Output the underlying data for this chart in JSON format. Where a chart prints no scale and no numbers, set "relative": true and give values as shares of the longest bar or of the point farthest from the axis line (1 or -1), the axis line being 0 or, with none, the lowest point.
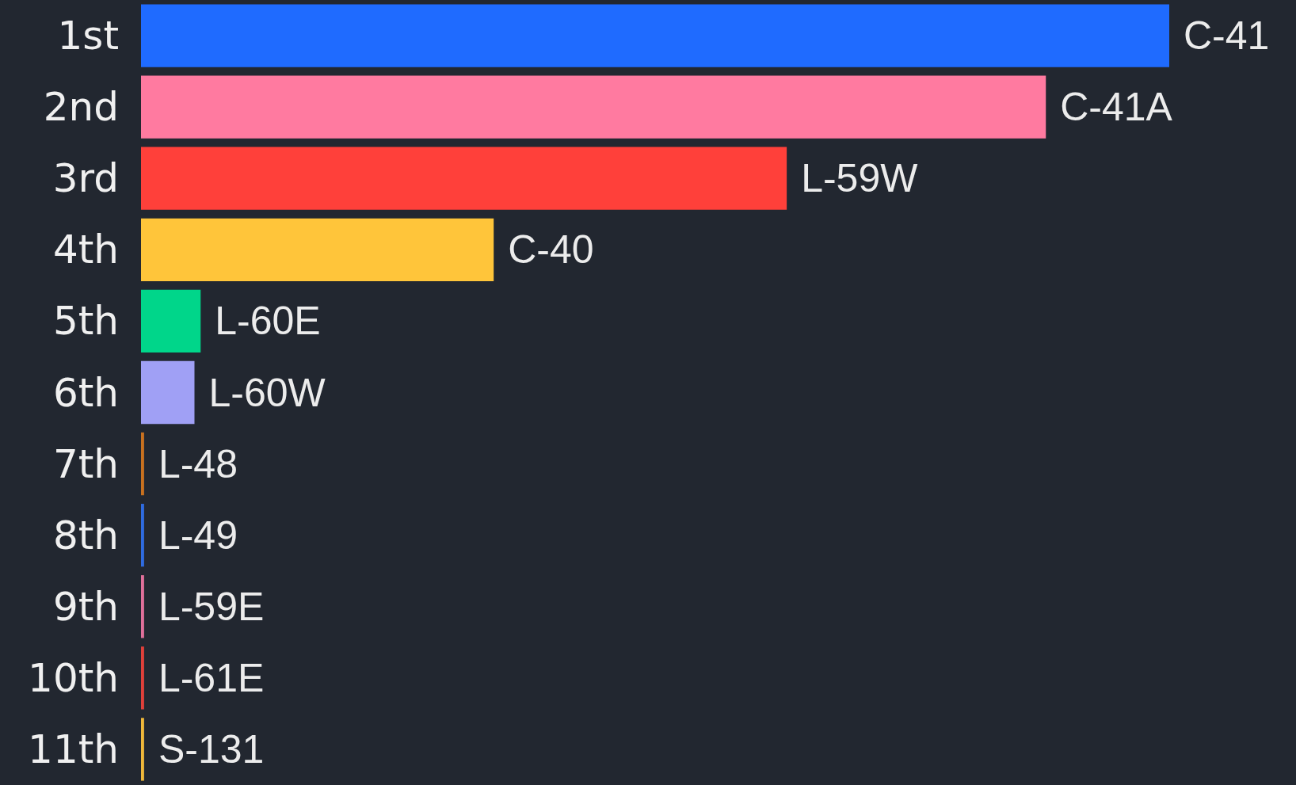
{
  "chart_data": {
    "type": "bar",
    "orientation": "horizontal",
    "relative": true,
    "stacked": true,
    "tick_labels": "y",
    "categories": [
      "1st",
      "2nd",
      "3rd",
      "4th",
      "5th",
      "6th",
      "7th",
      "8th",
      "9th",
      "10th",
      "11th"
    ],
    "series": [
      {
        "name": "C-41",
        "color": "#1f6bff",
        "values": [
          1,
          null,
          null,
          null,
          null,
          null,
          null,
          null,
          null,
          null,
          null
        ]
      },
      {
        "name": "C-41A",
        "color": "#ff7aa0",
        "values": [
          null,
          0.88,
          null,
          null,
          null,
          null,
          null,
          null,
          null,
          null,
          null
        ]
      },
      {
        "name": "L-59W",
        "color": "#ff403a",
        "values": [
          null,
          null,
          0.628,
          null,
          null,
          null,
          null,
          null,
          null,
          null,
          null
        ]
      },
      {
        "name": "C-40",
        "color": "#ffc53a",
        "values": [
          null,
          null,
          null,
          0.343,
          null,
          null,
          null,
          null,
          null,
          null,
          null
        ]
      },
      {
        "name": "L-60E",
        "color": "#00d68a",
        "values": [
          null,
          null,
          null,
          null,
          0.058,
          null,
          null,
          null,
          null,
          null,
          null
        ]
      },
      {
        "name": "L-60W",
        "color": "#a0a0f5",
        "values": [
          null,
          null,
          null,
          null,
          null,
          0.052,
          null,
          null,
          null,
          null,
          null
        ]
      },
      {
        "name": "L-48",
        "color": "#c8711f",
        "values": [
          null,
          null,
          null,
          null,
          null,
          null,
          0.003,
          null,
          null,
          null,
          null
        ]
      },
      {
        "name": "L-49",
        "color": "#2f6be0",
        "values": [
          null,
          null,
          null,
          null,
          null,
          null,
          null,
          0.003,
          null,
          null,
          null
        ]
      },
      {
        "name": "L-59E",
        "color": "#e0709a",
        "values": [
          null,
          null,
          null,
          null,
          null,
          null,
          null,
          null,
          0.003,
          null,
          null
        ]
      },
      {
        "name": "L-61E",
        "color": "#e0403a",
        "values": [
          null,
          null,
          null,
          null,
          null,
          null,
          null,
          null,
          null,
          0.003,
          null
        ]
      },
      {
        "name": "S-131",
        "color": "#f0b83a",
        "values": [
          null,
          null,
          null,
          null,
          null,
          null,
          null,
          null,
          null,
          null,
          0.003
        ]
      }
    ]
  }
}
